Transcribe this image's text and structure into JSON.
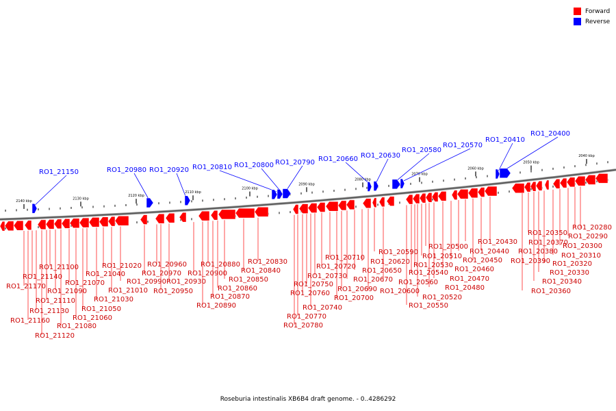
{
  "legend": {
    "forward_label": "Forward",
    "reverse_label": "Reverse",
    "forward_color": "#ff0000",
    "reverse_color": "#0000ff"
  },
  "caption": "Roseburia intestinalis XB6B4 draft genome. - 0..4286292",
  "ticks": [
    "2140 kbp",
    "2130 kbp",
    "2120 kbp",
    "2110 kbp",
    "2100 kbp",
    "2090 kbp",
    "2080 kbp",
    "2070 kbp",
    "2060 kbp",
    "2050 kbp",
    "2040 kbp"
  ],
  "reverse_labels": [
    "RO1_21150",
    "RO1_20980",
    "RO1_20920",
    "RO1_20810",
    "RO1_20800",
    "RO1_20790",
    "RO1_20660",
    "RO1_20630",
    "RO1_20580",
    "RO1_20570",
    "RO1_20410",
    "RO1_20400"
  ],
  "forward_labels": [
    "RO1_21170",
    "RO1_21160",
    "RO1_21140",
    "RO1_21130",
    "RO1_21120",
    "RO1_21110",
    "RO1_21100",
    "RO1_21090",
    "RO1_21080",
    "RO1_21070",
    "RO1_21060",
    "RO1_21050",
    "RO1_21040",
    "RO1_21030",
    "RO1_21020",
    "RO1_21010",
    "RO1_20990",
    "RO1_20970",
    "RO1_20960",
    "RO1_20950",
    "RO1_20930",
    "RO1_20900",
    "RO1_20890",
    "RO1_20880",
    "RO1_20870",
    "RO1_20860",
    "RO1_20850",
    "RO1_20840",
    "RO1_20830",
    "RO1_20780",
    "RO1_20770",
    "RO1_20760",
    "RO1_20750",
    "RO1_20740",
    "RO1_20730",
    "RO1_20720",
    "RO1_20710",
    "RO1_20700",
    "RO1_20690",
    "RO1_20670",
    "RO1_20650",
    "RO1_20620",
    "RO1_20600",
    "RO1_20590",
    "RO1_20560",
    "RO1_20550",
    "RO1_20540",
    "RO1_20530",
    "RO1_20520",
    "RO1_20510",
    "RO1_20500",
    "RO1_20480",
    "RO1_20470",
    "RO1_20460",
    "RO1_20450",
    "RO1_20440",
    "RO1_20430",
    "RO1_20390",
    "RO1_20380",
    "RO1_20370",
    "RO1_20360",
    "RO1_20350",
    "RO1_20340",
    "RO1_20330",
    "RO1_20320",
    "RO1_20310",
    "RO1_20300",
    "RO1_20290",
    "RO1_20280"
  ]
}
